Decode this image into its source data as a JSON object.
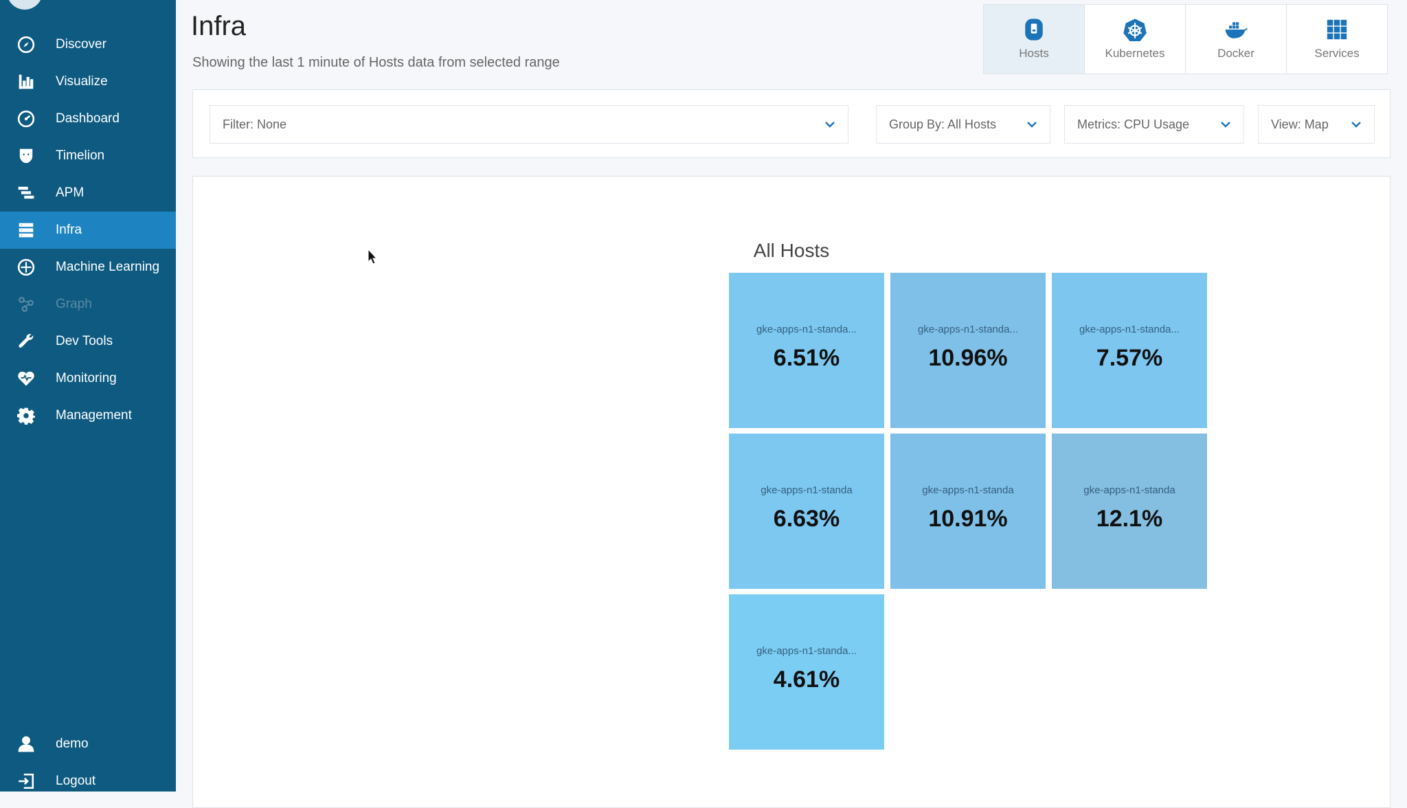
{
  "sidebar": {
    "items": [
      {
        "label": "Discover",
        "icon": "compass-icon"
      },
      {
        "label": "Visualize",
        "icon": "bar-chart-icon"
      },
      {
        "label": "Dashboard",
        "icon": "dashboard-icon"
      },
      {
        "label": "Timelion",
        "icon": "timelion-icon"
      },
      {
        "label": "APM",
        "icon": "apm-icon"
      },
      {
        "label": "Infra",
        "icon": "infra-icon",
        "active": true
      },
      {
        "label": "Machine Learning",
        "icon": "machine-learning-icon"
      },
      {
        "label": "Graph",
        "icon": "graph-icon",
        "disabled": true
      },
      {
        "label": "Dev Tools",
        "icon": "wrench-icon"
      },
      {
        "label": "Monitoring",
        "icon": "heartbeat-icon"
      },
      {
        "label": "Management",
        "icon": "gear-icon"
      }
    ],
    "user": {
      "label": "demo",
      "icon": "user-icon"
    },
    "logout": {
      "label": "Logout",
      "icon": "logout-icon"
    }
  },
  "header": {
    "title": "Infra",
    "subtitle": "Showing the last 1 minute of Hosts data from selected range"
  },
  "tabs": [
    {
      "label": "Hosts",
      "icon": "hosts-icon",
      "active": true
    },
    {
      "label": "Kubernetes",
      "icon": "kubernetes-icon"
    },
    {
      "label": "Docker",
      "icon": "docker-icon"
    },
    {
      "label": "Services",
      "icon": "services-grid-icon"
    }
  ],
  "toolbar": {
    "filter": "Filter: None",
    "group_by": "Group By: All Hosts",
    "metric": "Metrics: CPU Usage",
    "view": "View: Map"
  },
  "map": {
    "group_title": "All Hosts",
    "tiles": [
      {
        "name": "gke-apps-n1-standa...",
        "value": "6.51%",
        "color": "#7cc8f0"
      },
      {
        "name": "gke-apps-n1-standa...",
        "value": "10.96%",
        "color": "#7fc0e8"
      },
      {
        "name": "gke-apps-n1-standa...",
        "value": "7.57%",
        "color": "#7cc6ef"
      },
      {
        "name": "gke-apps-n1-standa",
        "value": "6.63%",
        "color": "#7cc8f0"
      },
      {
        "name": "gke-apps-n1-standa",
        "value": "10.91%",
        "color": "#7fc0e8"
      },
      {
        "name": "gke-apps-n1-standa",
        "value": "12.1%",
        "color": "#84bee0"
      },
      {
        "name": "gke-apps-n1-standa...",
        "value": "4.61%",
        "color": "#7ccdf3"
      }
    ]
  }
}
